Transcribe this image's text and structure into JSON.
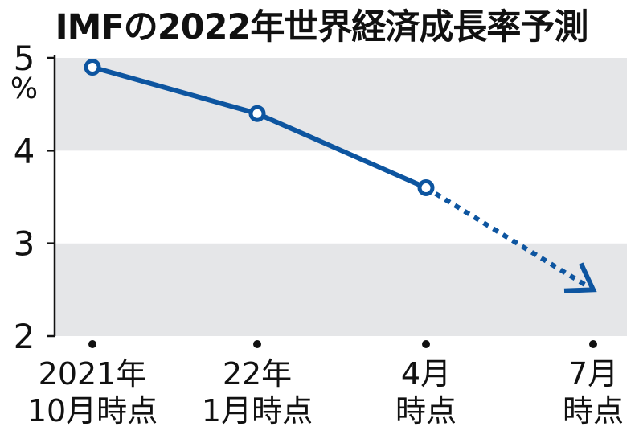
{
  "chart_data": {
    "type": "line",
    "title": "IMFの2022年世界経済成長率予測",
    "ylabel": "%",
    "ylim": [
      2,
      5
    ],
    "yticks": [
      "2",
      "3",
      "4",
      "5"
    ],
    "categories": [
      [
        "2021年",
        "10月時点"
      ],
      [
        "22年",
        "1月時点"
      ],
      [
        "4月",
        "時点"
      ],
      [
        "7月",
        "時点"
      ]
    ],
    "series": [
      {
        "values": [
          4.9,
          4.4,
          3.6,
          2.5
        ],
        "segment_styles": [
          "solid",
          "solid",
          "dotted-arrow"
        ],
        "color": "#0d55a0"
      }
    ],
    "grid": "alternating horizontal bands",
    "band_color": "#e5e6e8"
  }
}
